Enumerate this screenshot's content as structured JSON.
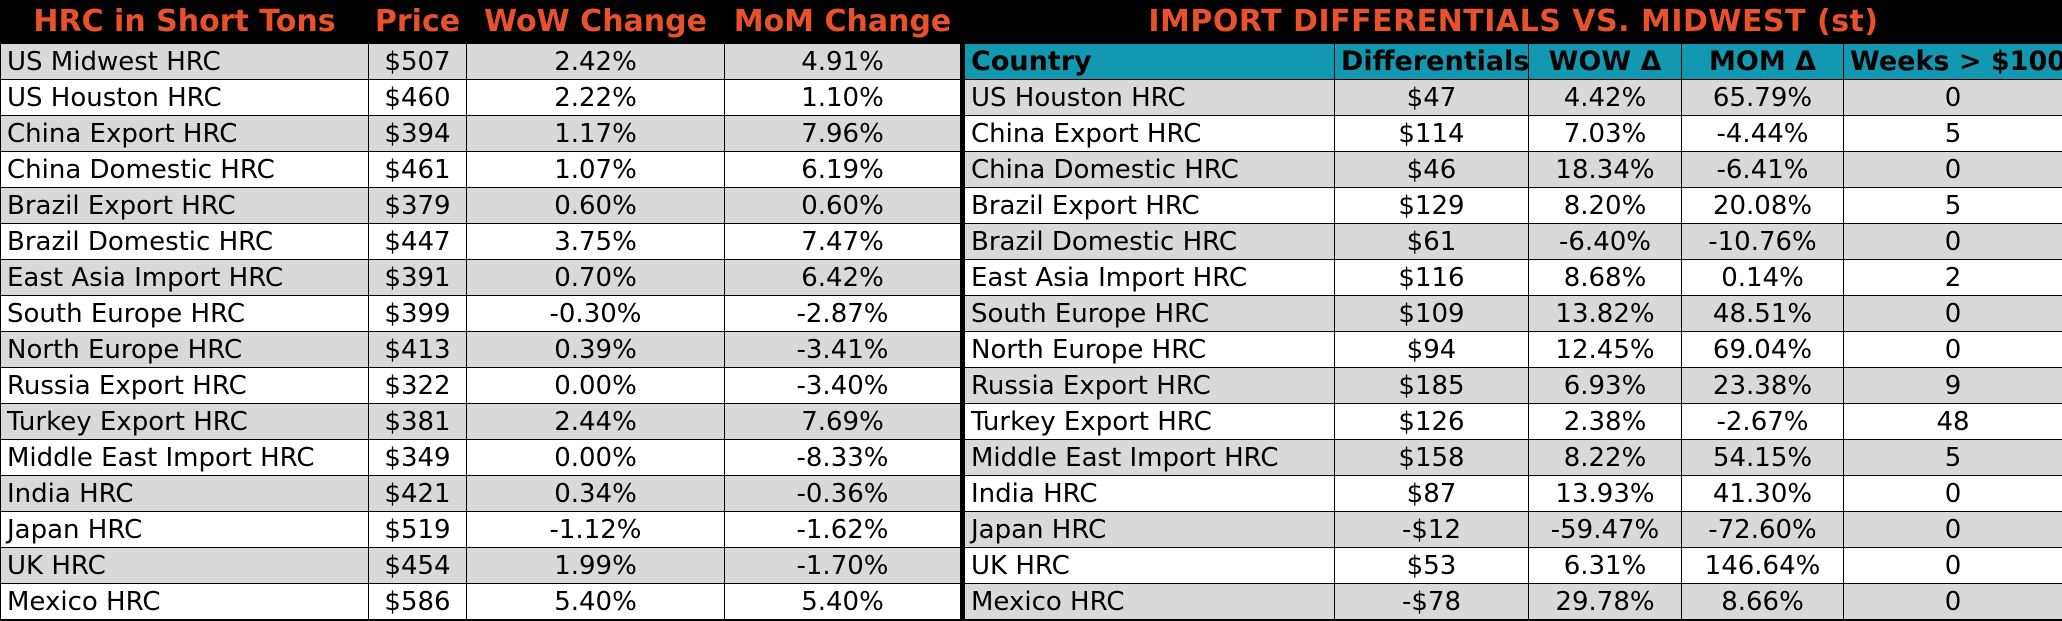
{
  "left": {
    "headers": [
      "HRC in Short Tons",
      "Price",
      "WoW Change",
      "MoM Change"
    ],
    "rows": [
      [
        "US Midwest HRC",
        "$507",
        "2.42%",
        "4.91%"
      ],
      [
        "US Houston HRC",
        "$460",
        "2.22%",
        "1.10%"
      ],
      [
        "China Export HRC",
        "$394",
        "1.17%",
        "7.96%"
      ],
      [
        "China Domestic HRC",
        "$461",
        "1.07%",
        "6.19%"
      ],
      [
        "Brazil Export HRC",
        "$379",
        "0.60%",
        "0.60%"
      ],
      [
        "Brazil Domestic HRC",
        "$447",
        "3.75%",
        "7.47%"
      ],
      [
        "East Asia Import HRC",
        "$391",
        "0.70%",
        "6.42%"
      ],
      [
        "South Europe HRC",
        "$399",
        "-0.30%",
        "-2.87%"
      ],
      [
        "North Europe HRC",
        "$413",
        "0.39%",
        "-3.41%"
      ],
      [
        "Russia Export HRC",
        "$322",
        "0.00%",
        "-3.40%"
      ],
      [
        "Turkey Export HRC",
        "$381",
        "2.44%",
        "7.69%"
      ],
      [
        "Middle East Import HRC",
        "$349",
        "0.00%",
        "-8.33%"
      ],
      [
        "India HRC",
        "$421",
        "0.34%",
        "-0.36%"
      ],
      [
        "Japan HRC",
        "$519",
        "-1.12%",
        "-1.62%"
      ],
      [
        "UK HRC",
        "$454",
        "1.99%",
        "-1.70%"
      ],
      [
        "Mexico HRC",
        "$586",
        "5.40%",
        "5.40%"
      ]
    ]
  },
  "right": {
    "title": "IMPORT DIFFERENTIALS VS. MIDWEST (st)",
    "headers": [
      "Country",
      "Differentials",
      "WOW Δ",
      "MOM Δ",
      "Weeks > $100"
    ],
    "rows": [
      [
        "US Houston HRC",
        "$47",
        "4.42%",
        "65.79%",
        "0"
      ],
      [
        "China Export HRC",
        "$114",
        "7.03%",
        "-4.44%",
        "5"
      ],
      [
        "China Domestic HRC",
        "$46",
        "18.34%",
        "-6.41%",
        "0"
      ],
      [
        "Brazil Export HRC",
        "$129",
        "8.20%",
        "20.08%",
        "5"
      ],
      [
        "Brazil Domestic HRC",
        "$61",
        "-6.40%",
        "-10.76%",
        "0"
      ],
      [
        "East Asia Import HRC",
        "$116",
        "8.68%",
        "0.14%",
        "2"
      ],
      [
        "South Europe HRC",
        "$109",
        "13.82%",
        "48.51%",
        "0"
      ],
      [
        "North Europe HRC",
        "$94",
        "12.45%",
        "69.04%",
        "0"
      ],
      [
        "Russia Export HRC",
        "$185",
        "6.93%",
        "23.38%",
        "9"
      ],
      [
        "Turkey Export HRC",
        "$126",
        "2.38%",
        "-2.67%",
        "48"
      ],
      [
        "Middle East Import HRC",
        "$158",
        "8.22%",
        "54.15%",
        "5"
      ],
      [
        "India HRC",
        "$87",
        "13.93%",
        "41.30%",
        "0"
      ],
      [
        "Japan HRC",
        "-$12",
        "-59.47%",
        "-72.60%",
        "0"
      ],
      [
        "UK HRC",
        "$53",
        "6.31%",
        "146.64%",
        "0"
      ],
      [
        "Mexico HRC",
        "-$78",
        "29.78%",
        "8.66%",
        "0"
      ]
    ]
  },
  "colors": {
    "title_orange": "#e8512a",
    "header_teal": "#1298b1",
    "row_gray": "#d9d9d9",
    "row_white": "#ffffff"
  }
}
